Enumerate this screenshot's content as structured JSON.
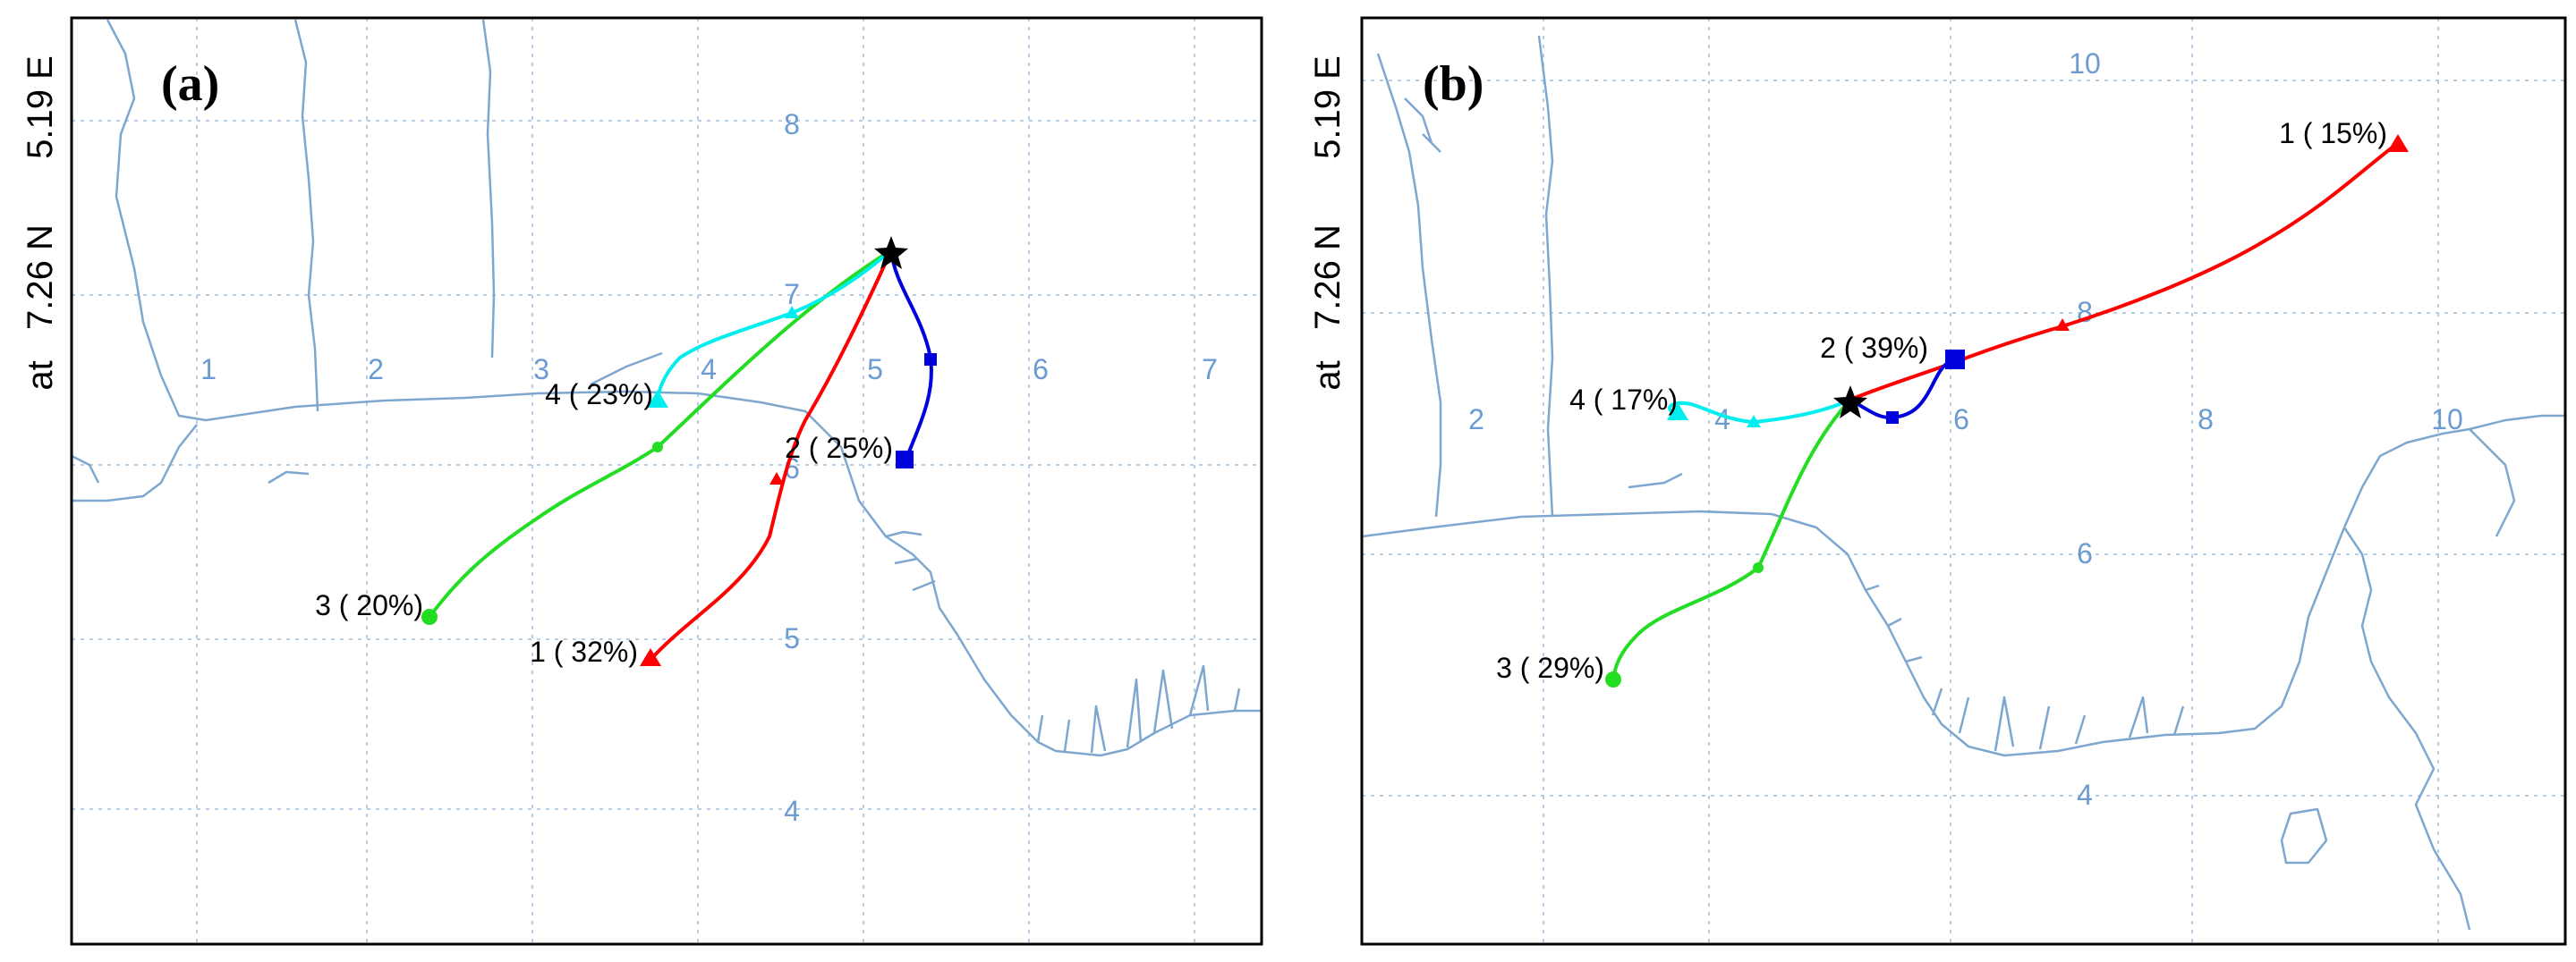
{
  "y_axis_label_lines": [
    "at",
    "7.26 N",
    "5.19 E"
  ],
  "panels": [
    {
      "label": "(a)",
      "grid_numbers": [
        "1",
        "2",
        "3",
        "4",
        "5",
        "6",
        "7",
        "8",
        "7",
        "6",
        "5",
        "4"
      ],
      "trajectories": [
        {
          "label": "1 ( 32%)",
          "color": "#ff0000",
          "marker": "triangle"
        },
        {
          "label": "2 ( 25%)",
          "color": "#0000dd",
          "marker": "square"
        },
        {
          "label": "3 ( 20%)",
          "color": "#22dd22",
          "marker": "circle"
        },
        {
          "label": "4 ( 23%)",
          "color": "#00eeee",
          "marker": "triangle"
        }
      ]
    },
    {
      "label": "(b)",
      "grid_numbers": [
        "2",
        "4",
        "6",
        "8",
        "10",
        "10",
        "8",
        "6",
        "4"
      ],
      "trajectories": [
        {
          "label": "1 ( 15%)",
          "color": "#ff0000",
          "marker": "triangle"
        },
        {
          "label": "2 ( 39%)",
          "color": "#0000dd",
          "marker": "square"
        },
        {
          "label": "3 ( 29%)",
          "color": "#22dd22",
          "marker": "circle"
        },
        {
          "label": "4 ( 17%)",
          "color": "#00eeee",
          "marker": "triangle"
        }
      ]
    }
  ],
  "start_marker": "star-icon"
}
